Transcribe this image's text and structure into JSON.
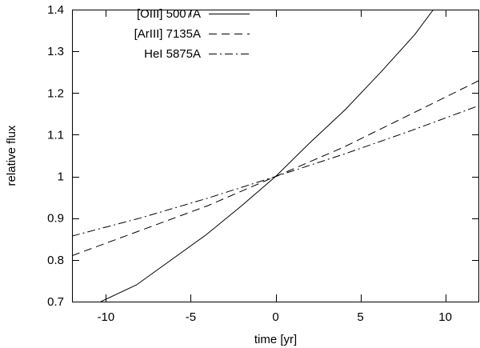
{
  "chart_data": {
    "type": "line",
    "xlabel": "time [yr]",
    "ylabel": "relative flux",
    "xlim": [
      -12,
      12
    ],
    "ylim": [
      0.7,
      1.4
    ],
    "xticks": [
      -10,
      -5,
      0,
      5,
      10
    ],
    "yticks": [
      0.7,
      0.8,
      0.9,
      1,
      1.1,
      1.2,
      1.3,
      1.4
    ],
    "ytick_labels": [
      "0.7",
      "0.8",
      "0.9",
      "1",
      "1.1",
      "1.2",
      "1.3",
      "1.4"
    ],
    "grid": false,
    "legend_position": "top-left",
    "series": [
      {
        "name": "[OIII] 5007A",
        "style": "solid",
        "x": [
          -10.3,
          -8.2,
          -4.1,
          -2,
          0,
          2,
          4.1,
          6.2,
          8.2,
          9.3
        ],
        "y": [
          0.7,
          0.74,
          0.86,
          0.93,
          1.0,
          1.08,
          1.16,
          1.25,
          1.34,
          1.4
        ]
      },
      {
        "name": "[ArIII] 7135A",
        "style": "dashed",
        "x": [
          -12,
          -8,
          -4,
          0,
          4,
          8,
          12
        ],
        "y": [
          0.81,
          0.87,
          0.93,
          1.0,
          1.07,
          1.15,
          1.23
        ]
      },
      {
        "name": "HeI 5875A",
        "style": "dashdot",
        "x": [
          -12,
          -8,
          -4,
          0,
          4,
          8,
          12
        ],
        "y": [
          0.857,
          0.9,
          0.948,
          1.0,
          1.053,
          1.11,
          1.17
        ]
      }
    ]
  }
}
